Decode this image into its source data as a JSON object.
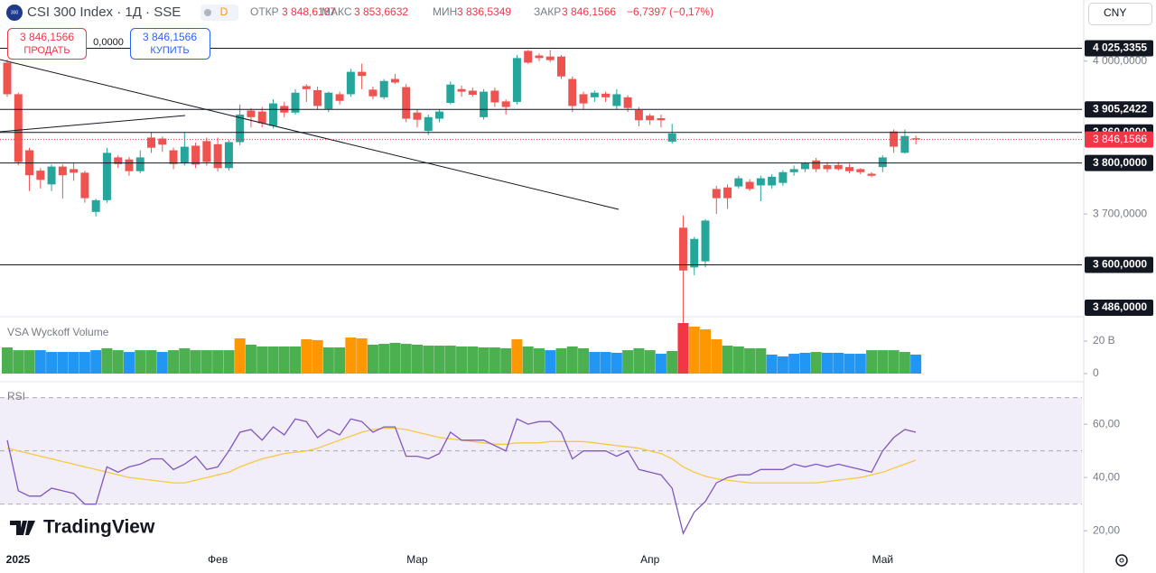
{
  "header": {
    "logo_badge": "300",
    "symbol": "CSI 300 Index · 1Д · SSE",
    "interval_badge": "D",
    "open_label": "ОТКР",
    "open": "3 848,6187",
    "high_label": "МАКС",
    "high": "3 853,6632",
    "low_label": "МИН",
    "low": "3 836,5349",
    "close_label": "ЗАКР",
    "close": "3 846,1566",
    "change": "−6,7397 (−0,17%)",
    "sell_price": "3 846,1566",
    "sell_label": "ПРОДАТЬ",
    "spread": "0,0000",
    "buy_price": "3 846,1566",
    "buy_label": "КУПИТЬ",
    "currency": "CNY",
    "brand": "TradingView"
  },
  "chart_data": [
    {
      "type": "candlestick",
      "categories": [
        "2025",
        null,
        null,
        null,
        null,
        null,
        null,
        null,
        null,
        null,
        null,
        null,
        null,
        null,
        null,
        null,
        null,
        null,
        null,
        "Фев",
        null,
        null,
        null,
        null,
        null,
        null,
        null,
        null,
        null,
        null,
        null,
        null,
        null,
        null,
        null,
        null,
        null,
        "Мар",
        null,
        null,
        null,
        null,
        null,
        null,
        null,
        null,
        null,
        null,
        null,
        null,
        null,
        null,
        null,
        null,
        null,
        null,
        null,
        null,
        "Апр",
        null,
        null,
        null,
        null,
        null,
        null,
        null,
        null,
        null,
        null,
        null,
        null,
        null,
        null,
        null,
        null,
        null,
        null,
        null,
        null,
        "Май",
        null,
        null,
        null
      ],
      "open": [
        3997,
        3935,
        3825,
        3785,
        3758,
        3793,
        3788,
        3781,
        3704,
        3727,
        3811,
        3807,
        3784,
        3850,
        3848,
        3825,
        3800,
        3834,
        3843,
        3837,
        3790,
        3841,
        3903,
        3901,
        3873,
        3912,
        3899,
        3951,
        3943,
        3906,
        3935,
        3935,
        3979,
        3944,
        3929,
        3965,
        3949,
        3899,
        3863,
        3887,
        3918,
        3945,
        3942,
        3890,
        3942,
        3921,
        3920,
        4020,
        4011,
        4009,
        4009,
        3965,
        3935,
        3929,
        3936,
        3912,
        3929,
        3904,
        3893,
        3888,
        3842,
        3673,
        3595,
        3607,
        3749,
        3752,
        3754,
        3763,
        3756,
        3756,
        3761,
        3782,
        3788,
        3805,
        3796,
        3796,
        3792,
        3788,
        3779,
        3792,
        3862,
        3820,
        3848.6187
      ],
      "high": [
        4003,
        3938,
        3830,
        3790,
        3797,
        3797,
        3800,
        3785,
        3730,
        3830,
        3815,
        3812,
        3825,
        3860,
        3852,
        3830,
        3860,
        3840,
        3850,
        3850,
        3845,
        3915,
        3908,
        3910,
        3925,
        3920,
        3945,
        3955,
        3950,
        3940,
        3940,
        3985,
        3995,
        3950,
        3965,
        3975,
        3955,
        3905,
        3895,
        3905,
        3960,
        3952,
        3948,
        3945,
        3948,
        3925,
        4012,
        4022,
        4015,
        4022,
        4012,
        3970,
        3940,
        3942,
        3940,
        3945,
        3933,
        3910,
        3897,
        3895,
        3877,
        3697,
        3655,
        3690,
        3755,
        3758,
        3775,
        3768,
        3775,
        3778,
        3786,
        3795,
        3802,
        3810,
        3802,
        3802,
        3798,
        3790,
        3782,
        3815,
        3866,
        3866,
        3853.6632
      ],
      "low": [
        3930,
        3796,
        3745,
        3750,
        3745,
        3730,
        3765,
        3722,
        3695,
        3722,
        3790,
        3775,
        3780,
        3820,
        3822,
        3788,
        3795,
        3790,
        3795,
        3783,
        3785,
        3835,
        3870,
        3870,
        3868,
        3890,
        3895,
        3920,
        3905,
        3900,
        3915,
        3930,
        3945,
        3925,
        3925,
        3955,
        3880,
        3870,
        3855,
        3880,
        3915,
        3930,
        3930,
        3885,
        3910,
        3895,
        3915,
        3995,
        4000,
        3998,
        3965,
        3900,
        3905,
        3920,
        3920,
        3905,
        3900,
        3872,
        3875,
        3870,
        3838,
        3486,
        3580,
        3595,
        3700,
        3710,
        3750,
        3745,
        3725,
        3750,
        3755,
        3775,
        3782,
        3782,
        3782,
        3785,
        3780,
        3778,
        3772,
        3782,
        3820,
        3818,
        3836.5349
      ],
      "close": [
        3935,
        3802,
        3776,
        3767,
        3793,
        3776,
        3781,
        3731,
        3727,
        3820,
        3798,
        3784,
        3811,
        3830,
        3836,
        3798,
        3832,
        3797,
        3802,
        3790,
        3841,
        3895,
        3890,
        3878,
        3917,
        3899,
        3938,
        3945,
        3912,
        3938,
        3922,
        3979,
        3971,
        3931,
        3961,
        3958,
        3887,
        3885,
        3890,
        3901,
        3954,
        3940,
        3934,
        3940,
        3919,
        3910,
        4006,
        3997,
        4006,
        4002,
        3970,
        3912,
        3917,
        3938,
        3929,
        3935,
        3908,
        3884,
        3884,
        3884,
        3858,
        3589,
        3651,
        3687,
        3731,
        3731,
        3770,
        3749,
        3770,
        3773,
        3782,
        3788,
        3800,
        3788,
        3788,
        3788,
        3784,
        3782,
        3775,
        3811,
        3832,
        3853,
        3846.1566
      ],
      "up_color": "#26a69a",
      "down_color": "#ef5350",
      "ylim": [
        3500,
        4120
      ],
      "yticks": [
        {
          "value": 4000,
          "label": "4 000,0000"
        },
        {
          "value": 3700,
          "label": "3 700,0000"
        }
      ],
      "levels": [
        {
          "value": 4025.3355,
          "label": "4 025,3355"
        },
        {
          "value": 3905.2422,
          "label": "3 905,2422"
        },
        {
          "value": 3860,
          "label": "3 860,0000"
        },
        {
          "value": 3800,
          "label": "3 800,0000"
        },
        {
          "value": 3600,
          "label": "3 600,0000"
        }
      ],
      "low_mark": {
        "value": 3486,
        "label": "3 486,0000"
      },
      "last": {
        "value": 3846.1566,
        "label": "3 846,1566",
        "color": "#f23645"
      }
    },
    {
      "type": "bar",
      "title": "VSA Wyckoff Volume",
      "values": [
        16.1,
        14.4,
        14.4,
        14.4,
        13.3,
        13.3,
        13.3,
        13.3,
        14.4,
        15.6,
        14.4,
        13.3,
        14.4,
        14.4,
        13.3,
        14.4,
        15.6,
        14.4,
        14.4,
        14.4,
        14.4,
        21.7,
        17.8,
        16.7,
        16.7,
        16.7,
        16.7,
        21.1,
        20.6,
        16.1,
        16.1,
        22.2,
        21.7,
        17.8,
        18.3,
        18.9,
        18.3,
        17.8,
        17.2,
        17.2,
        17.2,
        16.7,
        16.7,
        16.1,
        16.1,
        15.6,
        21.1,
        16.7,
        15.6,
        14.4,
        15.6,
        16.7,
        15.6,
        13.3,
        13.3,
        12.8,
        14.4,
        15.6,
        14.4,
        12.2,
        13.9,
        31.1,
        28.9,
        27.2,
        21.1,
        17.2,
        16.7,
        15.6,
        15.6,
        11.7,
        10.6,
        12.2,
        12.8,
        13.3,
        12.8,
        12.8,
        12.2,
        12.2,
        14.4,
        14.4,
        14.4,
        13.3,
        11.7
      ],
      "colors": [
        "#4caf50",
        "#4caf50",
        "#4caf50",
        "#2196f3",
        "#2196f3",
        "#2196f3",
        "#2196f3",
        "#2196f3",
        "#2196f3",
        "#4caf50",
        "#4caf50",
        "#2196f3",
        "#4caf50",
        "#4caf50",
        "#2196f3",
        "#4caf50",
        "#4caf50",
        "#4caf50",
        "#4caf50",
        "#4caf50",
        "#4caf50",
        "#ff9800",
        "#4caf50",
        "#4caf50",
        "#4caf50",
        "#4caf50",
        "#4caf50",
        "#ff9800",
        "#ff9800",
        "#4caf50",
        "#4caf50",
        "#ff9800",
        "#ff9800",
        "#4caf50",
        "#4caf50",
        "#4caf50",
        "#4caf50",
        "#4caf50",
        "#4caf50",
        "#4caf50",
        "#4caf50",
        "#4caf50",
        "#4caf50",
        "#4caf50",
        "#4caf50",
        "#4caf50",
        "#ff9800",
        "#4caf50",
        "#4caf50",
        "#2196f3",
        "#4caf50",
        "#4caf50",
        "#4caf50",
        "#2196f3",
        "#2196f3",
        "#2196f3",
        "#4caf50",
        "#4caf50",
        "#4caf50",
        "#2196f3",
        "#4caf50",
        "#f23645",
        "#ff9800",
        "#ff9800",
        "#ff9800",
        "#4caf50",
        "#4caf50",
        "#4caf50",
        "#4caf50",
        "#2196f3",
        "#2196f3",
        "#2196f3",
        "#2196f3",
        "#4caf50",
        "#2196f3",
        "#2196f3",
        "#2196f3",
        "#2196f3",
        "#4caf50",
        "#4caf50",
        "#4caf50",
        "#4caf50",
        "#2196f3"
      ],
      "ylim": [
        0,
        30
      ],
      "yticks": [
        {
          "value": 20,
          "label": "20 B"
        },
        0
      ]
    },
    {
      "type": "line",
      "title": "RSI",
      "series": [
        {
          "color": "#7e57c2",
          "values": [
            54,
            35,
            33,
            33,
            36,
            35,
            34,
            30,
            30,
            44,
            42,
            44,
            45,
            47,
            47,
            43,
            45,
            48,
            43,
            44,
            50,
            57,
            58,
            54,
            59,
            56,
            62,
            61,
            55,
            58,
            56,
            62,
            61,
            57,
            59,
            59,
            48,
            48,
            47,
            49,
            57,
            54,
            54,
            54,
            52,
            50,
            62,
            60,
            61,
            61,
            57,
            47,
            50,
            50,
            50,
            48,
            50,
            43,
            42,
            41,
            36,
            19,
            27,
            31,
            38,
            40,
            41,
            41,
            43,
            43,
            43,
            45,
            44,
            45,
            44,
            45,
            44,
            43,
            42,
            50,
            55,
            58,
            57
          ]
        },
        {
          "color": "#f7c844",
          "values": [
            51,
            50,
            49,
            48,
            47,
            46,
            45,
            44,
            43,
            42,
            41,
            40,
            39.5,
            39,
            38.5,
            38,
            38,
            39,
            40,
            41,
            42,
            44,
            45.5,
            47,
            48,
            49,
            49.5,
            50,
            51,
            52.5,
            54,
            55.5,
            57,
            58,
            58.5,
            58.5,
            58,
            57,
            56,
            55,
            54.5,
            54,
            53.5,
            53,
            52.5,
            52.5,
            53,
            53,
            53,
            53.5,
            53.5,
            53.5,
            53.5,
            53,
            52.5,
            52,
            51.5,
            51,
            50,
            49,
            47,
            44,
            42,
            40.5,
            39.5,
            39,
            38.5,
            38,
            38,
            38,
            38,
            38,
            38,
            38,
            38.5,
            39,
            39.5,
            40,
            41,
            42,
            43.5,
            45,
            46.5
          ]
        }
      ],
      "ylim": [
        16,
        73.6
      ],
      "yticks": [
        {
          "value": 60,
          "label": "60,00"
        },
        {
          "value": 40,
          "label": "40,00"
        },
        {
          "value": 20,
          "label": "20,00"
        }
      ],
      "levels": [
        70,
        50,
        30
      ]
    }
  ]
}
